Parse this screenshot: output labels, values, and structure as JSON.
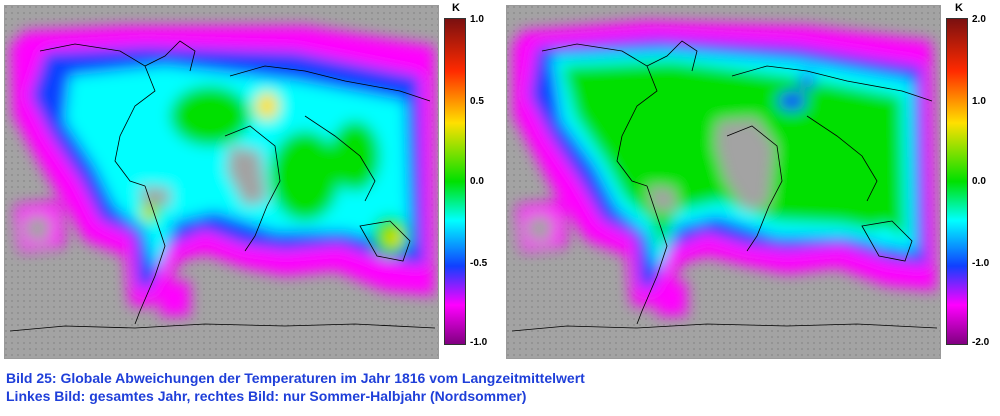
{
  "maps": [
    {
      "colorbar": {
        "unit": "K",
        "ticks": [
          "1.0",
          "0.5",
          "0.0",
          "-0.5",
          "-1.0"
        ],
        "min": -1.0,
        "max": 1.0
      }
    },
    {
      "colorbar": {
        "unit": "K",
        "ticks": [
          "2.0",
          "1.0",
          "0.0",
          "-1.0",
          "-2.0"
        ],
        "min": -2.0,
        "max": 2.0
      }
    }
  ],
  "caption": {
    "line1": "Bild 25: Globale Abweichungen der Temperaturen im Jahr 1816 vom Langzeitmittelwert",
    "line2": "Linkes Bild: gesamtes Jahr,    rechtes Bild: nur Sommer-Halbjahr (Nordsommer)"
  },
  "colors": {
    "nodata": "#a3a3a3",
    "caption": "#1f3fd9",
    "scale": [
      "#7b1010",
      "#ff2a00",
      "#ffe000",
      "#00e000",
      "#00ffff",
      "#1040ff",
      "#ff00ff",
      "#800080"
    ]
  }
}
